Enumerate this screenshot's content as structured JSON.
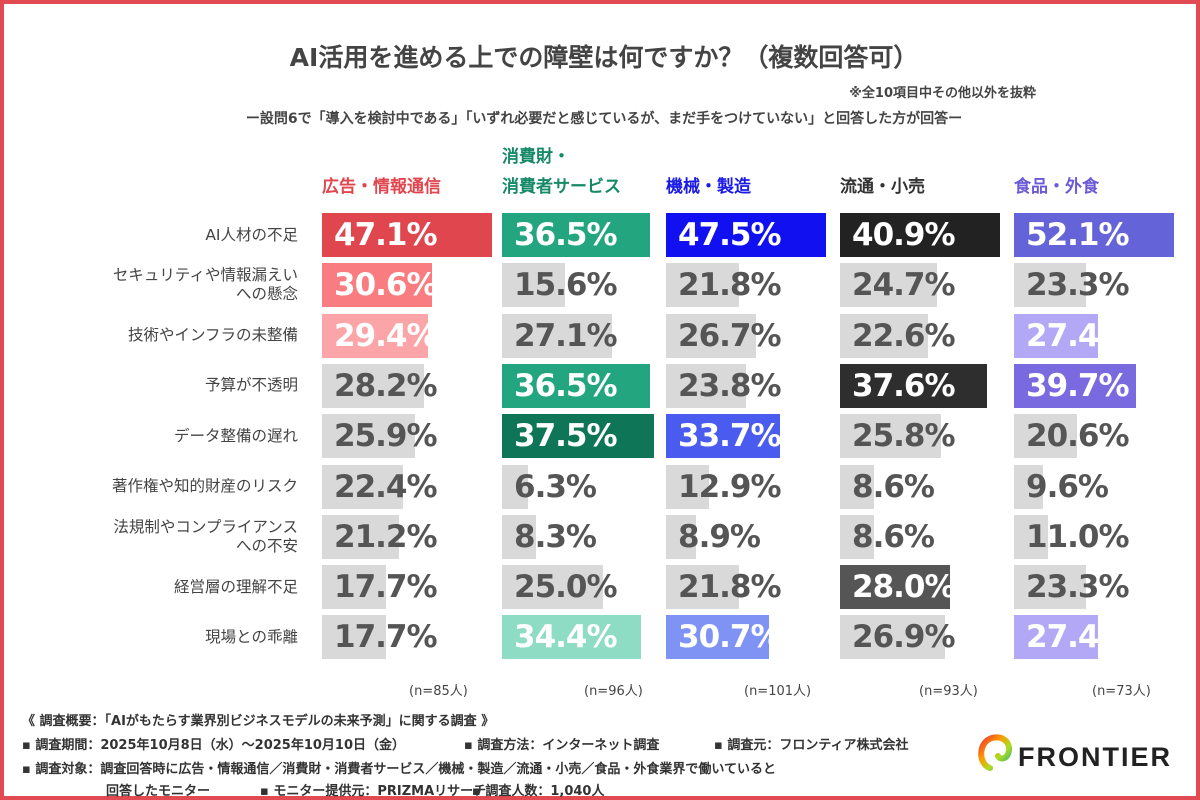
{
  "chart_data": {
    "type": "bar",
    "title": "AI活用を進める上での障壁は何ですか？（複数回答可）",
    "note": "※全10項目中その他以外を抜粋",
    "subtitle": "ー設問6で「導入を検討中である」「いずれ必要だと感じているが、まだ手をつけていない」と回答した方が回答ー",
    "categories": [
      "AI人材の不足",
      "セキュリティや情報漏えい\nへの懸念",
      "技術やインフラの未整備",
      "予算が不透明",
      "データ整備の遅れ",
      "著作権や知的財産のリスク",
      "法規制やコンプライアンス\nへの不安",
      "経営層の理解不足",
      "現場との乖離"
    ],
    "unit": "%",
    "gray_color": "#d9d9d9",
    "series": [
      {
        "name": "広告・情報通信",
        "color": "#e0464e",
        "n": "(n=85人)",
        "values": [
          47.1,
          30.6,
          29.4,
          28.2,
          25.9,
          22.4,
          21.2,
          17.7,
          17.7
        ],
        "highlight": [
          "#e0464e",
          "#f97c80",
          "#fca5a8",
          null,
          null,
          null,
          null,
          null,
          null
        ]
      },
      {
        "name": "消費財・\n消費者サービス",
        "color": "#168a67",
        "n": "(n=96人)",
        "values": [
          36.5,
          15.6,
          27.1,
          36.5,
          37.5,
          6.3,
          8.3,
          25.0,
          34.4
        ],
        "highlight": [
          "#23a67f",
          null,
          null,
          "#23a67f",
          "#0e7556",
          null,
          null,
          null,
          "#8fdcc4"
        ]
      },
      {
        "name": "機械・製造",
        "color": "#1a1ae6",
        "n": "(n=101人)",
        "values": [
          47.5,
          21.8,
          26.7,
          23.8,
          33.7,
          12.9,
          8.9,
          21.8,
          30.7
        ],
        "highlight": [
          "#1010f0",
          null,
          null,
          null,
          "#4a5cf0",
          null,
          null,
          null,
          "#7f93f5"
        ]
      },
      {
        "name": "流通・小売",
        "color": "#333333",
        "n": "(n=93人)",
        "values": [
          40.9,
          24.7,
          22.6,
          37.6,
          25.8,
          8.6,
          8.6,
          28.0,
          26.9
        ],
        "highlight": [
          "#222222",
          null,
          null,
          "#2e2e2e",
          null,
          null,
          null,
          "#555555",
          null
        ]
      },
      {
        "name": "食品・外食",
        "color": "#6a5ad8",
        "n": "(n=73人)",
        "values": [
          52.1,
          23.3,
          27.4,
          39.7,
          20.6,
          9.6,
          11.0,
          23.3,
          27.4
        ],
        "highlight": [
          "#6464d8",
          null,
          "#b3a8f5",
          "#7a6ae0",
          null,
          null,
          null,
          null,
          "#b3a8f5"
        ]
      }
    ]
  },
  "footer": {
    "survey_title": "《 調査概要：「AIがもたらす業界別ビジネスモデルの未来予測」に関する調査 》",
    "period": "▪ 調査期間：2025年10月8日（水）〜2025年10月10日（金）",
    "method": "▪ 調査方法：インターネット調査",
    "source": "▪ 調査元：フロンティア株式会社",
    "target1": "▪ 調査対象：調査回答時に広告・情報通信／消費財・消費者サービス／機械・製造／流通・小売／食品・外食業界で働いていると",
    "target2": "回答したモニター",
    "provider": "▪ モニター提供元：PRIZMAリサーチ",
    "count": "▪ 調査人数：1,040人"
  },
  "logo": {
    "text": "FRONTIER"
  },
  "frame_color": "#e24a52"
}
